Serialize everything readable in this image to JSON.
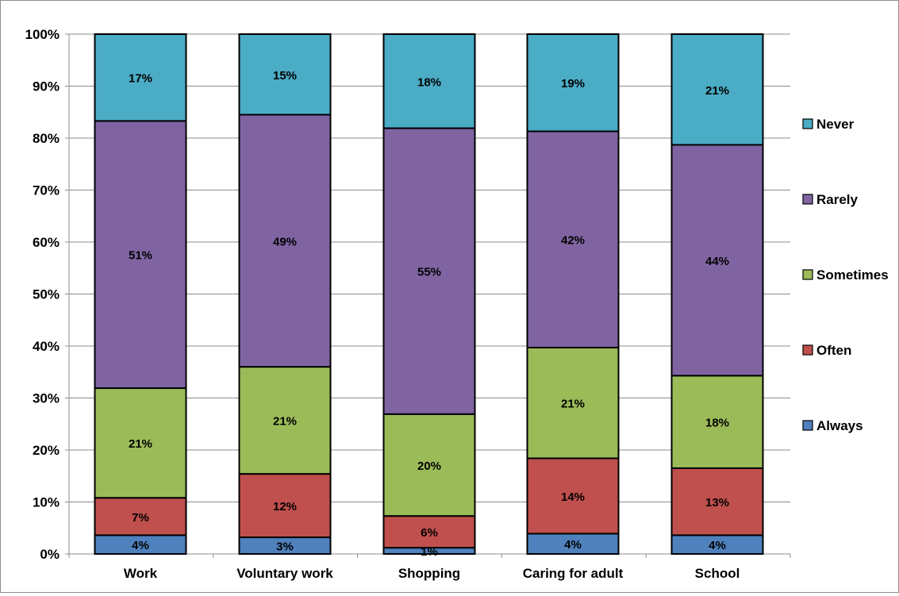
{
  "chart_data": {
    "type": "bar",
    "stacked": true,
    "percent": true,
    "categories": [
      "Work",
      "Voluntary work",
      "Shopping",
      "Caring for adult",
      "School"
    ],
    "series": [
      {
        "name": "Always",
        "color": "#4f81bd",
        "values": [
          3.6,
          3.2,
          1.2,
          3.9,
          3.6
        ],
        "labels": [
          "4%",
          "3%",
          "1%",
          "4%",
          "4%"
        ]
      },
      {
        "name": "Often",
        "color": "#c0504d",
        "values": [
          7.2,
          12.2,
          6.1,
          14.5,
          12.9
        ],
        "labels": [
          "7%",
          "12%",
          "6%",
          "14%",
          "13%"
        ]
      },
      {
        "name": "Sometimes",
        "color": "#9bbb59",
        "values": [
          21.1,
          20.6,
          19.6,
          21.3,
          17.8
        ],
        "labels": [
          "21%",
          "21%",
          "20%",
          "21%",
          "18%"
        ]
      },
      {
        "name": "Rarely",
        "color": "#8064a2",
        "values": [
          51.4,
          48.5,
          55.0,
          41.6,
          44.4
        ],
        "labels": [
          "51%",
          "49%",
          "55%",
          "42%",
          "44%"
        ]
      },
      {
        "name": "Never",
        "color": "#4bacc6",
        "values": [
          16.7,
          15.5,
          18.1,
          18.7,
          21.3
        ],
        "labels": [
          "17%",
          "15%",
          "18%",
          "19%",
          "21%"
        ]
      }
    ],
    "ylim": [
      0,
      100
    ],
    "yticks": [
      "0%",
      "10%",
      "20%",
      "30%",
      "40%",
      "50%",
      "60%",
      "70%",
      "80%",
      "90%",
      "100%"
    ],
    "title": "",
    "xlabel": "",
    "ylabel": "",
    "grid": true,
    "legend_position": "right"
  }
}
